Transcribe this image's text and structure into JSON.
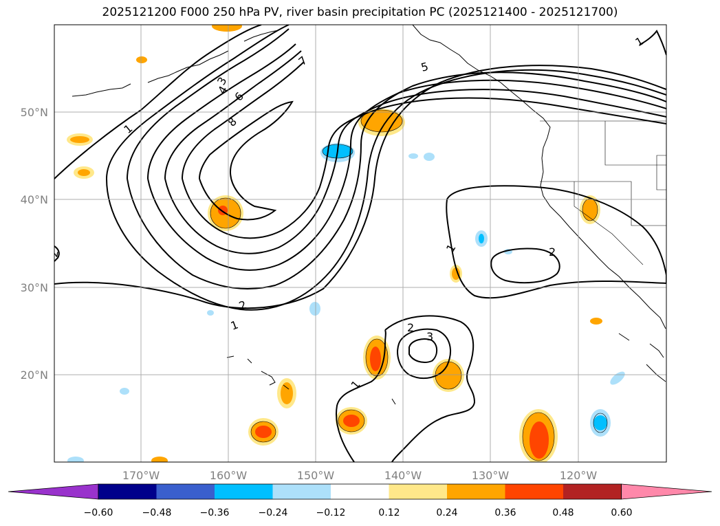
{
  "title": "2025121200 F000 250 hPa PV, river basin precipitation PC (2025121400 - 2025121700)",
  "lat_labels": [
    "50°N",
    "40°N",
    "30°N",
    "20°N"
  ],
  "lon_labels": [
    "170°W",
    "160°W",
    "150°W",
    "140°W",
    "130°W",
    "120°W"
  ],
  "colorbar": {
    "ticks": [
      "−0.60",
      "−0.48",
      "−0.36",
      "−0.24",
      "−0.12",
      "0.12",
      "0.24",
      "0.36",
      "0.48",
      "0.60"
    ],
    "colors": [
      "#9932CC",
      "#00008B",
      "#3A5FCD",
      "#00BFFF",
      "#ADE0FA",
      "#FFFFFF",
      "#FFE88A",
      "#FFA500",
      "#FF4500",
      "#B22222",
      "#FF88AA"
    ]
  },
  "pv_contour_labels": [
    "1",
    "2",
    "3",
    "4",
    "5",
    "6",
    "7",
    "8",
    "1",
    "2",
    "1",
    "2",
    "3",
    "1",
    "2",
    "1"
  ]
}
